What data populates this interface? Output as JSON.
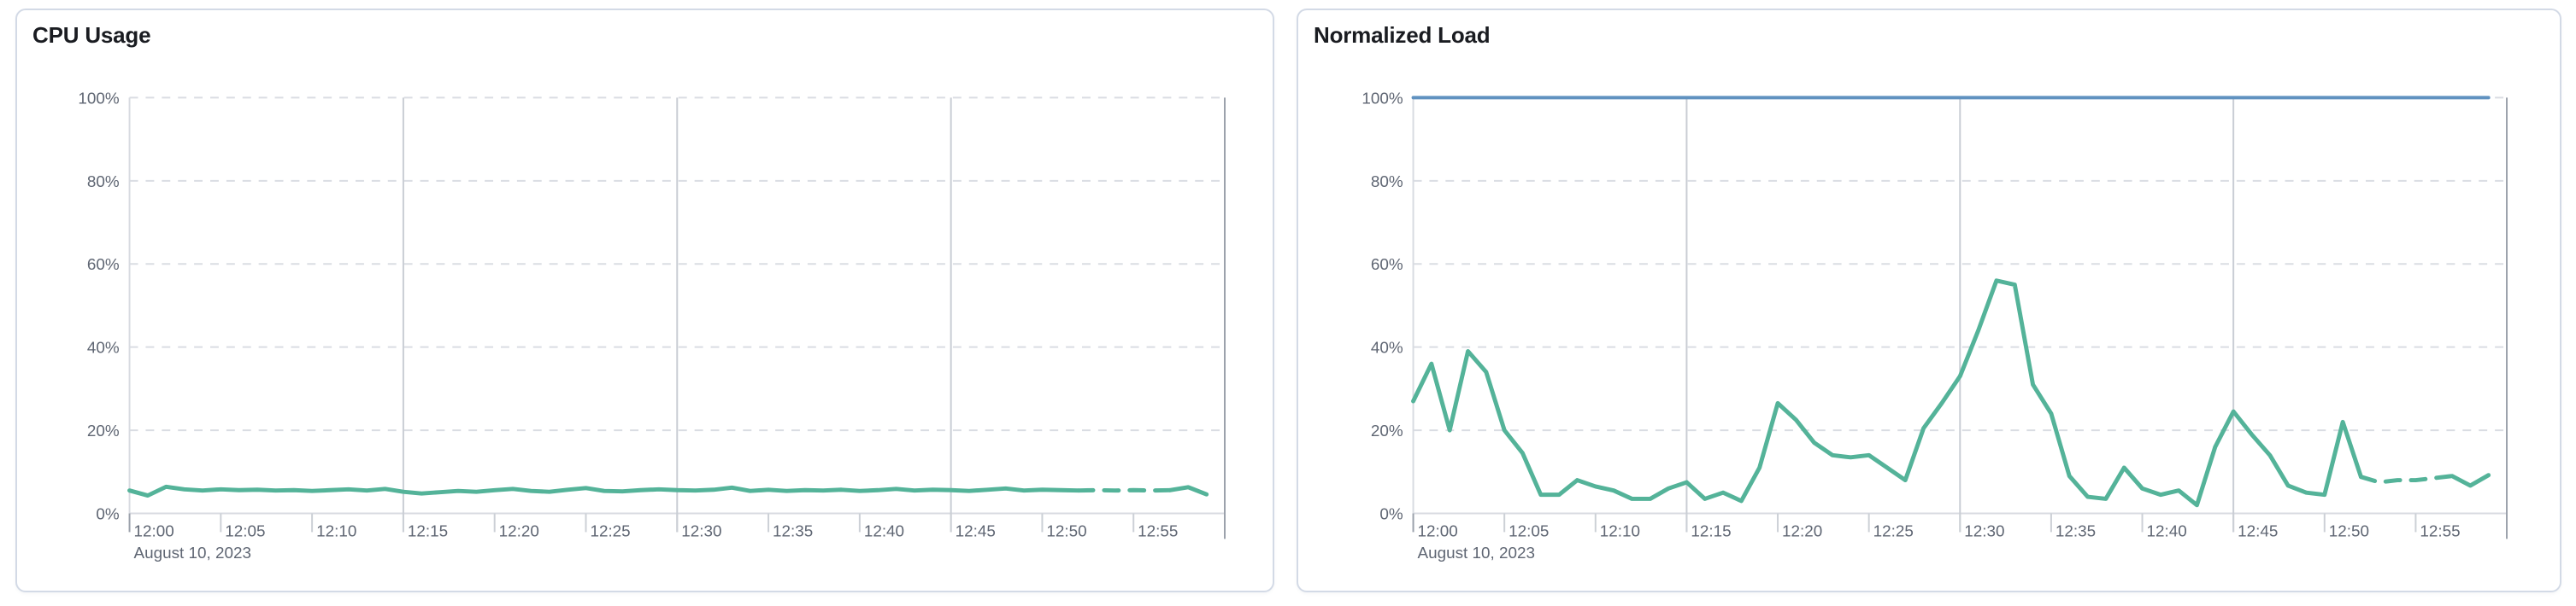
{
  "app": {
    "background": "#ffffff",
    "panel_border_color": "#d3dae6"
  },
  "panels": [
    {
      "name": "cpu-usage"
    },
    {
      "name": "normalized-load"
    }
  ],
  "chart_data": [
    {
      "type": "line",
      "title": "CPU Usage",
      "date_annotation": "August 10, 2023",
      "x": [
        "12:00",
        "12:01",
        "12:02",
        "12:03",
        "12:04",
        "12:05",
        "12:06",
        "12:07",
        "12:08",
        "12:09",
        "12:10",
        "12:11",
        "12:12",
        "12:13",
        "12:14",
        "12:15",
        "12:16",
        "12:17",
        "12:18",
        "12:19",
        "12:20",
        "12:21",
        "12:22",
        "12:23",
        "12:24",
        "12:25",
        "12:26",
        "12:27",
        "12:28",
        "12:29",
        "12:30",
        "12:31",
        "12:32",
        "12:33",
        "12:34",
        "12:35",
        "12:36",
        "12:37",
        "12:38",
        "12:39",
        "12:40",
        "12:41",
        "12:42",
        "12:43",
        "12:44",
        "12:45",
        "12:46",
        "12:47",
        "12:48",
        "12:49",
        "12:50",
        "12:51",
        "12:52",
        "12:53",
        "12:54",
        "12:55",
        "12:56",
        "12:57",
        "12:58",
        "12:59"
      ],
      "x_tick_labels": [
        "12:00",
        "12:05",
        "12:10",
        "12:15",
        "12:20",
        "12:25",
        "12:30",
        "12:35",
        "12:40",
        "12:45",
        "12:50",
        "12:55"
      ],
      "y_tick_labels": [
        "0%",
        "20%",
        "40%",
        "60%",
        "80%",
        "100%"
      ],
      "ylim": [
        0,
        100
      ],
      "grid": {
        "horizontal": "dashed",
        "vertical_major_minutes": [
          15,
          30,
          45
        ],
        "right_edge_minute": 60,
        "legend": "none"
      },
      "series": [
        {
          "name": "cpu-usage",
          "color": "#54b399",
          "stroke_width": 5,
          "dash_segment": {
            "from_index": 52,
            "to_index": 57
          },
          "values": [
            5.5,
            4.3,
            6.4,
            5.8,
            5.5,
            5.8,
            5.6,
            5.7,
            5.5,
            5.6,
            5.4,
            5.6,
            5.8,
            5.5,
            5.9,
            5.2,
            4.8,
            5.1,
            5.4,
            5.2,
            5.6,
            5.9,
            5.4,
            5.2,
            5.7,
            6.1,
            5.4,
            5.3,
            5.6,
            5.8,
            5.6,
            5.5,
            5.7,
            6.2,
            5.4,
            5.7,
            5.4,
            5.6,
            5.5,
            5.7,
            5.4,
            5.6,
            5.9,
            5.5,
            5.7,
            5.6,
            5.4,
            5.7,
            6.0,
            5.5,
            5.7,
            5.6,
            5.5,
            5.6,
            5.5,
            5.6,
            5.5,
            5.6,
            6.3,
            4.6
          ]
        }
      ]
    },
    {
      "type": "line",
      "title": "Normalized Load",
      "date_annotation": "August 10, 2023",
      "x": [
        "12:00",
        "12:01",
        "12:02",
        "12:03",
        "12:04",
        "12:05",
        "12:06",
        "12:07",
        "12:08",
        "12:09",
        "12:10",
        "12:11",
        "12:12",
        "12:13",
        "12:14",
        "12:15",
        "12:16",
        "12:17",
        "12:18",
        "12:19",
        "12:20",
        "12:21",
        "12:22",
        "12:23",
        "12:24",
        "12:25",
        "12:26",
        "12:27",
        "12:28",
        "12:29",
        "12:30",
        "12:31",
        "12:32",
        "12:33",
        "12:34",
        "12:35",
        "12:36",
        "12:37",
        "12:38",
        "12:39",
        "12:40",
        "12:41",
        "12:42",
        "12:43",
        "12:44",
        "12:45",
        "12:46",
        "12:47",
        "12:48",
        "12:49",
        "12:50",
        "12:51",
        "12:52",
        "12:53",
        "12:54",
        "12:55",
        "12:56",
        "12:57",
        "12:58",
        "12:59"
      ],
      "x_tick_labels": [
        "12:00",
        "12:05",
        "12:10",
        "12:15",
        "12:20",
        "12:25",
        "12:30",
        "12:35",
        "12:40",
        "12:45",
        "12:50",
        "12:55"
      ],
      "y_tick_labels": [
        "0%",
        "20%",
        "40%",
        "60%",
        "80%",
        "100%"
      ],
      "ylim": [
        0,
        100
      ],
      "grid": {
        "horizontal": "dashed",
        "vertical_major_minutes": [
          15,
          30,
          45
        ],
        "right_edge_minute": 60,
        "legend": "none"
      },
      "series": [
        {
          "name": "load-limit",
          "color": "#6092c0",
          "stroke_width": 4,
          "values": [
            100,
            100,
            100,
            100,
            100,
            100,
            100,
            100,
            100,
            100,
            100,
            100,
            100,
            100,
            100,
            100,
            100,
            100,
            100,
            100,
            100,
            100,
            100,
            100,
            100,
            100,
            100,
            100,
            100,
            100,
            100,
            100,
            100,
            100,
            100,
            100,
            100,
            100,
            100,
            100,
            100,
            100,
            100,
            100,
            100,
            100,
            100,
            100,
            100,
            100,
            100,
            100,
            100,
            100,
            100,
            100,
            100,
            100,
            100,
            100
          ]
        },
        {
          "name": "normalized-load",
          "color": "#54b399",
          "stroke_width": 5,
          "dash_segment": {
            "from_index": 52,
            "to_index": 57
          },
          "values": [
            27,
            36,
            20,
            39,
            34,
            20,
            14.5,
            4.5,
            4.5,
            8,
            6.5,
            5.5,
            3.5,
            3.5,
            6,
            7.5,
            3.5,
            5,
            3,
            11,
            26.5,
            22.5,
            17,
            14,
            13.5,
            14,
            11,
            8,
            20.5,
            26.5,
            33,
            44,
            56,
            55,
            31,
            24,
            9,
            4,
            3.5,
            11,
            6,
            4.5,
            5.5,
            2,
            16,
            24.5,
            19,
            14,
            6.7,
            5,
            4.5,
            22,
            8.8,
            7.5,
            8,
            8,
            8.5,
            9,
            6.7,
            9.2
          ]
        }
      ]
    }
  ],
  "colors": {
    "series_green": "#54b399",
    "series_blue": "#6092c0",
    "grid_dashed": "#dadde3",
    "grid_vertical": "#c9cdd4",
    "axis_line": "#d8dbe1",
    "edge_line": "#9ba1ab",
    "axis_label": "#5f6673",
    "title": "#1a1c21"
  }
}
